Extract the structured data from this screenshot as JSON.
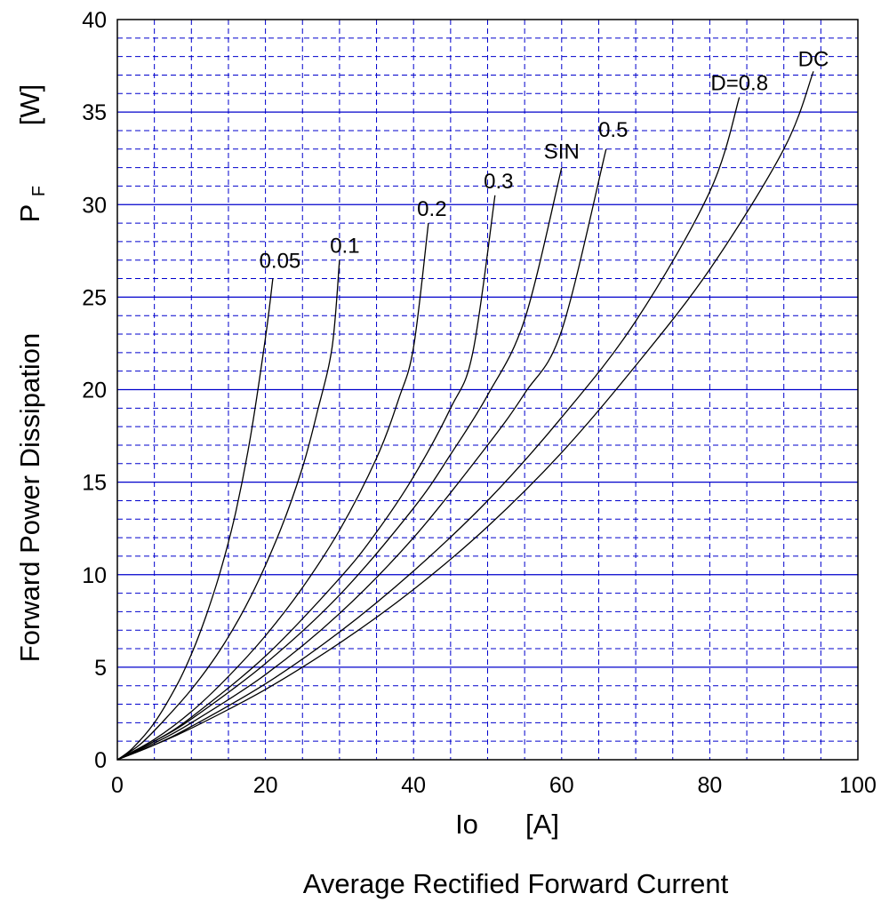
{
  "chart_data": {
    "type": "line",
    "xlabel_symbol": "Io",
    "xlabel_unit": "[A]",
    "xlabel": "Average Rectified Forward Current",
    "ylabel_symbol": "P",
    "ylabel_symbol_sub": "F",
    "ylabel_unit": "[W]",
    "ylabel": "Forward Power Dissipation",
    "xlim": [
      0,
      100
    ],
    "ylim": [
      0,
      40
    ],
    "x_ticks": [
      "0",
      "20",
      "40",
      "60",
      "80",
      "100"
    ],
    "y_ticks": [
      "0",
      "5",
      "10",
      "15",
      "20",
      "25",
      "30",
      "35",
      "40"
    ],
    "grid": true,
    "major_grid_color": "#0000cc",
    "minor_grid_color": "#0000cc",
    "curve_color": "#000000",
    "series": [
      {
        "name": "0.05",
        "x": [
          0,
          2,
          5,
          8,
          10,
          12,
          14,
          16,
          18,
          20,
          21
        ],
        "y": [
          0,
          0.6,
          2.0,
          4.0,
          5.7,
          7.8,
          10.3,
          13.4,
          17.5,
          22.8,
          26.0
        ]
      },
      {
        "name": "0.1",
        "x": [
          0,
          3,
          6,
          10,
          14,
          18,
          22,
          25,
          27,
          29,
          30
        ],
        "y": [
          0,
          0.8,
          2.0,
          3.8,
          6.0,
          8.8,
          12.4,
          15.8,
          18.8,
          22.3,
          27.0
        ]
      },
      {
        "name": "0.2",
        "x": [
          0,
          5,
          10,
          15,
          20,
          25,
          30,
          35,
          38,
          40,
          42
        ],
        "y": [
          0,
          1.1,
          2.6,
          4.5,
          6.7,
          9.3,
          12.4,
          16.3,
          19.5,
          22.3,
          29.0
        ]
      },
      {
        "name": "0.3",
        "x": [
          0,
          5,
          10,
          20,
          30,
          35,
          40,
          45,
          48,
          51
        ],
        "y": [
          0,
          1.0,
          2.3,
          5.6,
          9.8,
          12.3,
          15.3,
          19.0,
          22.0,
          30.5
        ]
      },
      {
        "name": "SIN",
        "x": [
          0,
          5,
          10,
          20,
          30,
          40,
          45,
          50,
          55,
          60
        ],
        "y": [
          0,
          1.0,
          2.2,
          5.2,
          8.9,
          13.6,
          16.5,
          19.7,
          23.8,
          32.0
        ]
      },
      {
        "name": "0.5",
        "x": [
          0,
          5,
          10,
          20,
          30,
          40,
          50,
          55,
          60,
          66
        ],
        "y": [
          0,
          0.9,
          2.0,
          4.6,
          7.9,
          12.0,
          17.0,
          19.8,
          23.2,
          33.0
        ]
      },
      {
        "name": "D=0.8",
        "x": [
          0,
          5,
          10,
          20,
          30,
          40,
          50,
          60,
          70,
          80,
          84
        ],
        "y": [
          0,
          0.8,
          1.8,
          4.1,
          6.9,
          10.2,
          14.0,
          18.5,
          23.7,
          30.7,
          35.8
        ]
      },
      {
        "name": "DC",
        "x": [
          0,
          5,
          10,
          20,
          30,
          40,
          50,
          60,
          70,
          80,
          90,
          94
        ],
        "y": [
          0,
          0.8,
          1.7,
          3.8,
          6.3,
          9.2,
          12.6,
          16.6,
          21.3,
          26.5,
          33.0,
          37.2
        ]
      }
    ]
  }
}
